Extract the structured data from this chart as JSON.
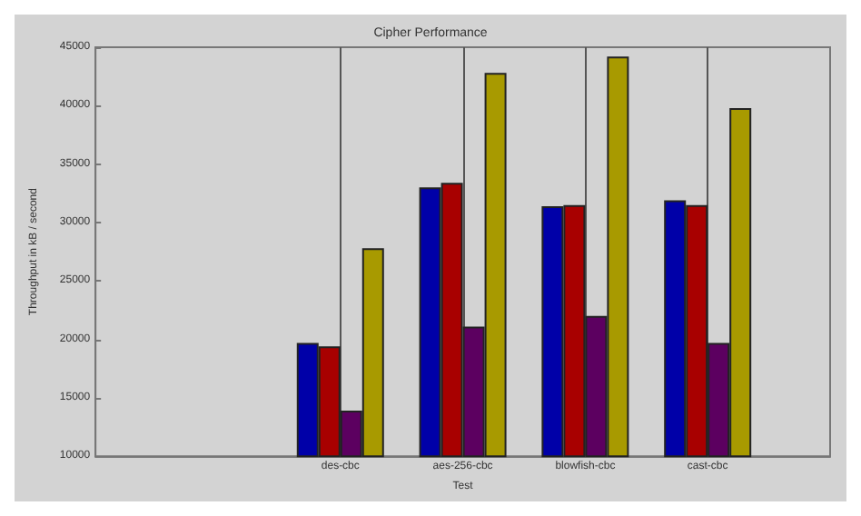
{
  "chart_data": {
    "type": "bar",
    "title": "Cipher Performance",
    "xlabel": "Test",
    "ylabel": "Throughput in kB / second",
    "categories": [
      null,
      null,
      "des-cbc",
      "aes-256-cbc",
      "blowfish-cbc",
      "cast-cbc",
      null
    ],
    "series": [
      {
        "color": "#0000a8",
        "values": [
          null,
          null,
          19700,
          33000,
          31400,
          31900,
          null
        ]
      },
      {
        "color": "#a80000",
        "values": [
          null,
          null,
          19400,
          33400,
          31500,
          31500,
          null
        ]
      },
      {
        "color": "#5c0060",
        "values": [
          null,
          null,
          13900,
          21100,
          22000,
          19700,
          null
        ]
      },
      {
        "color": "#a89a00",
        "values": [
          null,
          null,
          27800,
          42800,
          44200,
          39800,
          null
        ]
      }
    ],
    "ylim": [
      10000,
      45000
    ],
    "yticks": [
      10000,
      15000,
      20000,
      25000,
      30000,
      35000,
      40000,
      45000
    ],
    "grid": "x"
  }
}
